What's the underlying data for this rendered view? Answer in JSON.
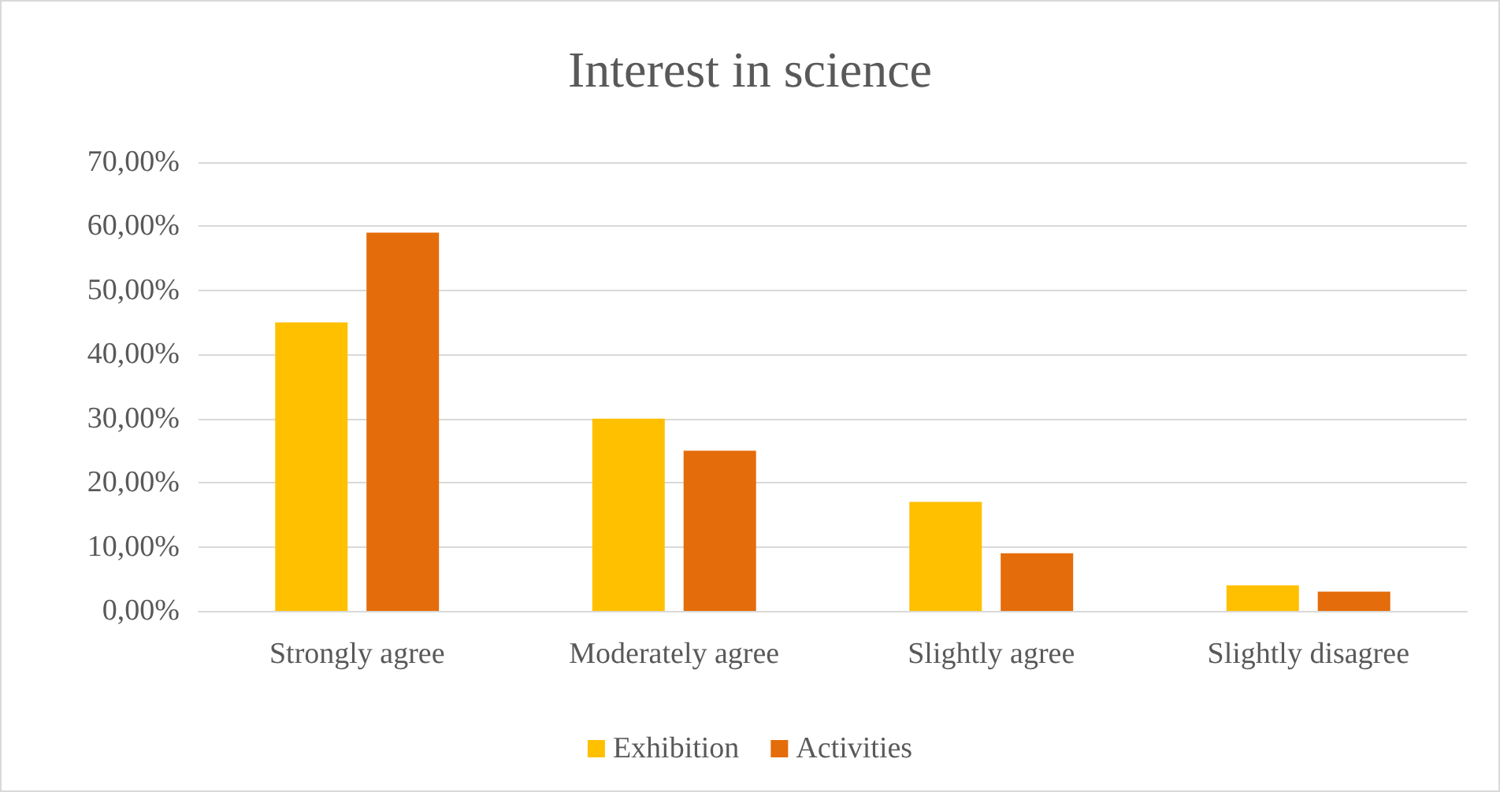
{
  "chart_data": {
    "type": "bar",
    "title": "Interest in science",
    "categories": [
      "Strongly agree",
      "Moderately agree",
      "Slightly agree",
      "Slightly disagree"
    ],
    "series": [
      {
        "name": "Exhibition",
        "color": "#ffc000",
        "values": [
          45,
          30,
          17,
          4
        ]
      },
      {
        "name": "Activities",
        "color": "#e46c0a",
        "values": [
          59,
          25,
          9,
          3
        ]
      }
    ],
    "ylim": [
      0,
      70
    ],
    "yticks": [
      {
        "value": 0,
        "label": "0,00%"
      },
      {
        "value": 10,
        "label": "10,00%"
      },
      {
        "value": 20,
        "label": "20,00%"
      },
      {
        "value": 30,
        "label": "30,00%"
      },
      {
        "value": 40,
        "label": "40,00%"
      },
      {
        "value": 50,
        "label": "50,00%"
      },
      {
        "value": 60,
        "label": "60,00%"
      },
      {
        "value": 70,
        "label": "70,00%"
      }
    ],
    "grid": "y",
    "legend": "bottom"
  }
}
